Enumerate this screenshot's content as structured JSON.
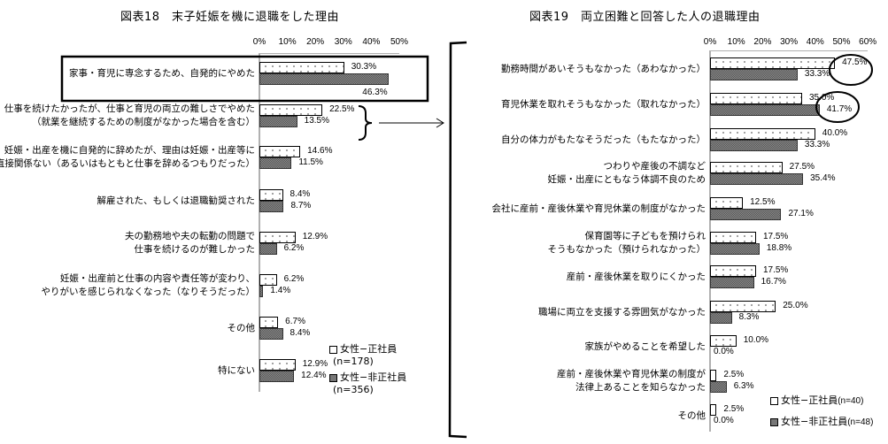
{
  "chart_data": [
    {
      "type": "bar",
      "orientation": "horizontal",
      "title": "図表18　末子妊娠を機に退職をした理由",
      "xlabel": "",
      "ylabel": "",
      "xlim": [
        0,
        50
      ],
      "ticks": [
        "0%",
        "10%",
        "20%",
        "30%",
        "40%",
        "50%"
      ],
      "categories": [
        [
          "家事・育児に専念するため、自発的にやめた"
        ],
        [
          "仕事を続けたかったが、仕事と育児の両立の難しさでやめた",
          "（就業を継続するための制度がなかった場合を含む）"
        ],
        [
          "妊娠・出産を機に自発的に辞めたが、理由は妊娠・出産等に",
          "直接関係ない（あるいはもともと仕事を辞めるつもりだった）"
        ],
        [
          "解雇された、もしくは退職勧奨された"
        ],
        [
          "夫の勤務地や夫の転勤の問題で",
          "仕事を続けるのが難しかった"
        ],
        [
          "妊娠・出産前と仕事の内容や責任等が変わり、",
          "やりがいを感じられなくなった（なりそうだった）"
        ],
        [
          "その他"
        ],
        [
          "特にない"
        ]
      ],
      "series": [
        {
          "name": "女性−正社員",
          "n": "(n=178)",
          "values": [
            30.3,
            22.5,
            14.6,
            8.4,
            12.9,
            6.2,
            6.7,
            12.9
          ],
          "labels": [
            "30.3%",
            "22.5%",
            "14.6%",
            "8.4%",
            "12.9%",
            "6.2%",
            "6.7%",
            "12.9%"
          ]
        },
        {
          "name": "女性−非正社員",
          "n": "(n=356)",
          "values": [
            46.3,
            13.5,
            11.5,
            8.7,
            6.2,
            1.4,
            8.4,
            12.4
          ],
          "labels": [
            "46.3%",
            "13.5%",
            "11.5%",
            "8.7%",
            "6.2%",
            "1.4%",
            "8.4%",
            "12.4%"
          ]
        }
      ],
      "annotations": [
        "box around 家事・育児に専念するため、自発的にやめた",
        "brace on 仕事と育児の両立の難しさ with arrow pointing to 図表19"
      ],
      "legend_position": "bottom-right",
      "grid": false
    },
    {
      "type": "bar",
      "orientation": "horizontal",
      "title": "図表19　両立困難と回答した人の退職理由",
      "xlabel": "",
      "ylabel": "",
      "xlim": [
        0,
        60
      ],
      "ticks": [
        "0%",
        "10%",
        "20%",
        "30%",
        "40%",
        "50%",
        "60%"
      ],
      "categories": [
        [
          "勤務時間があいそうもなかった（あわなかった）"
        ],
        [
          "育児休業を取れそうもなかった（取れなかった）"
        ],
        [
          "自分の体力がもたなそうだった（もたなかった）"
        ],
        [
          "つわりや産後の不調など",
          "妊娠・出産にともなう体調不良のため"
        ],
        [
          "会社に産前・産後休業や育児休業の制度がなかった"
        ],
        [
          "保育園等に子どもを預けられ",
          "そうもなかった（預けられなかった）"
        ],
        [
          "産前・産後休業を取りにくかった"
        ],
        [
          "職場に両立を支援する雰囲気がなかった"
        ],
        [
          "家族がやめることを希望した"
        ],
        [
          "産前・産後休業や育児休業の制度が",
          "法律上あることを知らなかった"
        ],
        [
          "その他"
        ]
      ],
      "series": [
        {
          "name": "女性−正社員",
          "n": "(n=40)",
          "values": [
            47.5,
            35.0,
            40.0,
            27.5,
            12.5,
            17.5,
            17.5,
            25.0,
            10.0,
            2.5,
            2.5
          ],
          "labels": [
            "47.5%",
            "35.0%",
            "40.0%",
            "27.5%",
            "12.5%",
            "17.5%",
            "17.5%",
            "25.0%",
            "10.0%",
            "2.5%",
            "2.5%"
          ]
        },
        {
          "name": "女性−非正社員",
          "n": "(n=48)",
          "values": [
            33.3,
            41.7,
            33.3,
            35.4,
            27.1,
            18.8,
            16.7,
            8.3,
            0.0,
            6.3,
            0.0
          ],
          "labels": [
            "33.3%",
            "41.7%",
            "33.3%",
            "35.4%",
            "27.1%",
            "18.8%",
            "16.7%",
            "8.3%",
            "0.0%",
            "6.3%",
            "0.0%"
          ]
        }
      ],
      "annotations": [
        "circle around 47.5%",
        "circle around 41.7%",
        "left bracket spanning the chart"
      ],
      "legend_position": "bottom-right",
      "grid": false
    }
  ]
}
